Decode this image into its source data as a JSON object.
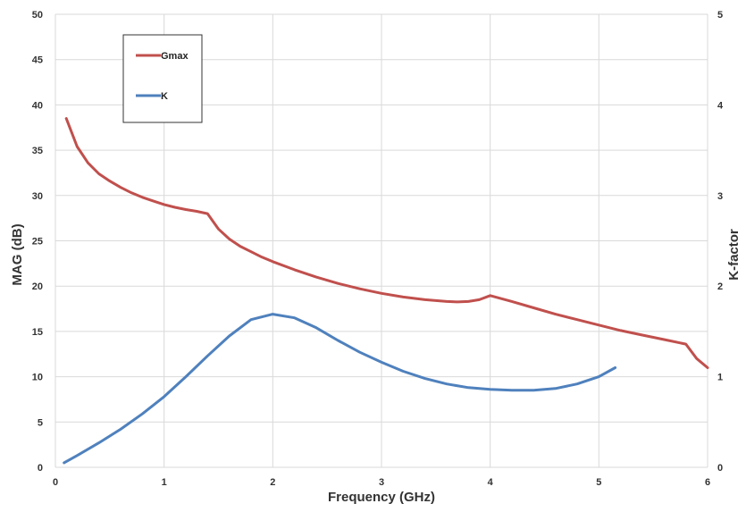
{
  "chart_data": {
    "type": "line",
    "xlabel": "Frequency (GHz)",
    "ylabel_left": "MAG (dB)",
    "ylabel_right": "K-factor",
    "xlim": [
      0,
      6
    ],
    "ylim_left": [
      0,
      50
    ],
    "ylim_right": [
      0,
      5
    ],
    "x_ticks": [
      "0",
      "1",
      "2",
      "3",
      "4",
      "5",
      "6"
    ],
    "y_left_ticks": [
      "0",
      "5",
      "10",
      "15",
      "20",
      "25",
      "30",
      "35",
      "40",
      "45",
      "50"
    ],
    "y_right_ticks": [
      "0",
      "1",
      "2",
      "3",
      "4",
      "5"
    ],
    "grid": true,
    "legend": {
      "position": "top-left",
      "entries": [
        "Gmax",
        "K"
      ]
    },
    "series": [
      {
        "name": "Gmax",
        "axis": "left",
        "color": "#c0504d",
        "x": [
          0.1,
          0.2,
          0.3,
          0.4,
          0.5,
          0.6,
          0.7,
          0.8,
          0.9,
          1.0,
          1.1,
          1.2,
          1.3,
          1.4,
          1.5,
          1.6,
          1.7,
          1.8,
          1.9,
          2.0,
          2.2,
          2.4,
          2.6,
          2.8,
          3.0,
          3.2,
          3.4,
          3.6,
          3.7,
          3.8,
          3.9,
          4.0,
          4.2,
          4.4,
          4.6,
          4.8,
          5.0,
          5.2,
          5.4,
          5.6,
          5.8,
          5.9,
          6.0
        ],
        "y": [
          38.5,
          35.4,
          33.6,
          32.4,
          31.6,
          30.9,
          30.3,
          29.8,
          29.4,
          29.0,
          28.7,
          28.45,
          28.25,
          28.0,
          26.3,
          25.2,
          24.4,
          23.8,
          23.2,
          22.7,
          21.8,
          21.0,
          20.3,
          19.7,
          19.2,
          18.8,
          18.5,
          18.3,
          18.25,
          18.3,
          18.5,
          18.95,
          18.3,
          17.6,
          16.9,
          16.3,
          15.7,
          15.1,
          14.6,
          14.1,
          13.6,
          12.0,
          11.0
        ]
      },
      {
        "name": "K",
        "axis": "right",
        "color": "#4f81bd",
        "x": [
          0.08,
          0.2,
          0.4,
          0.6,
          0.8,
          1.0,
          1.2,
          1.4,
          1.6,
          1.8,
          2.0,
          2.2,
          2.4,
          2.6,
          2.8,
          3.0,
          3.2,
          3.4,
          3.6,
          3.8,
          4.0,
          4.2,
          4.4,
          4.6,
          4.8,
          5.0,
          5.15
        ],
        "y": [
          0.05,
          0.13,
          0.27,
          0.42,
          0.59,
          0.78,
          1.0,
          1.23,
          1.45,
          1.63,
          1.69,
          1.65,
          1.54,
          1.4,
          1.27,
          1.16,
          1.06,
          0.98,
          0.92,
          0.88,
          0.86,
          0.85,
          0.85,
          0.87,
          0.92,
          1.0,
          1.1
        ]
      }
    ]
  }
}
